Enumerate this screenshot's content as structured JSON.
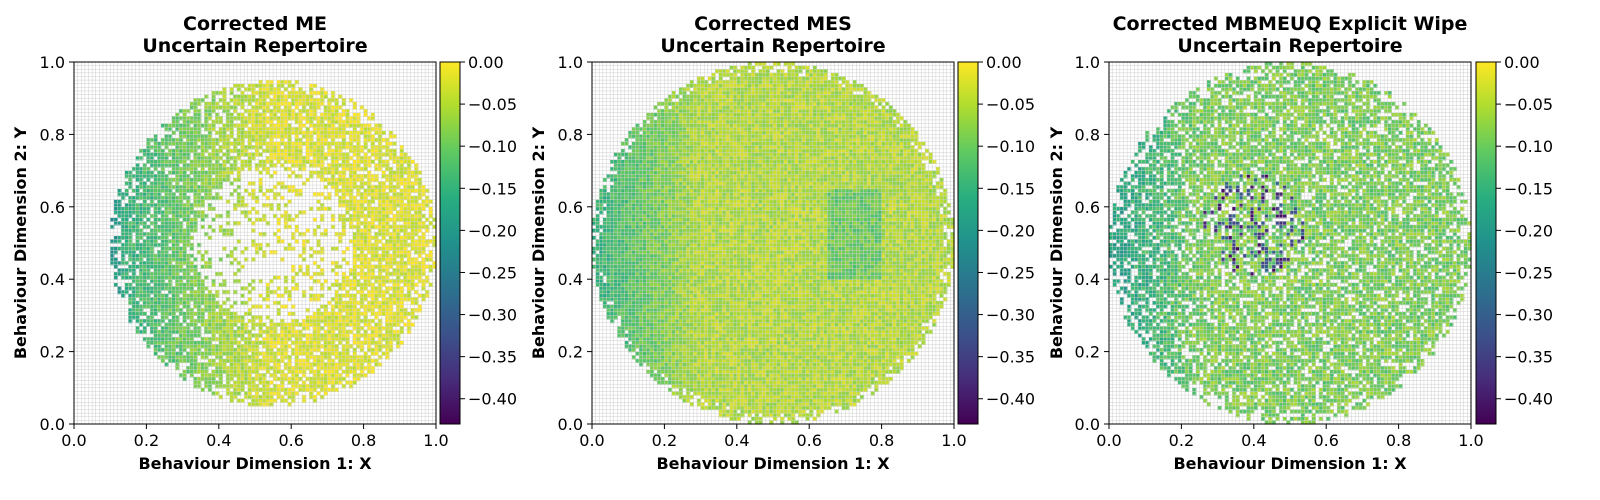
{
  "chart_data": [
    {
      "type": "heatmap",
      "title": "Corrected ME\nUncertain Repertoire",
      "xlabel": "Behaviour Dimension 1: X",
      "ylabel": "Behaviour Dimension 2: Y",
      "xlim": [
        0,
        1
      ],
      "ylim": [
        0,
        1
      ],
      "xticks": [
        "0.0",
        "0.2",
        "0.4",
        "0.6",
        "0.8",
        "1.0"
      ],
      "yticks": [
        "0.0",
        "0.2",
        "0.4",
        "0.6",
        "0.8",
        "1.0"
      ],
      "grid": true,
      "grid_cells": 100,
      "colormap": "viridis",
      "clim": [
        -0.43,
        0.0
      ],
      "colorbar_ticks": [
        "0.00",
        "−0.05",
        "−0.10",
        "−0.15",
        "−0.20",
        "−0.25",
        "−0.30",
        "−0.35",
        "−0.40"
      ],
      "data_shape": "circular region centred at (0.55, 0.5), radius 0.45, with a sparse hole in the middle (radius ~0.22)",
      "fill_region": {
        "center": [
          0.55,
          0.5
        ],
        "radius": 0.45,
        "hole_radius": 0.22,
        "hole_density": 0.3
      },
      "value_profile": "values near 0.00 (yellow) on the right side, decreasing to about −0.30 (dark) at the far-left edge"
    },
    {
      "type": "heatmap",
      "title": "Corrected MES\nUncertain Repertoire",
      "xlabel": "Behaviour Dimension 1: X",
      "ylabel": "Behaviour Dimension 2: Y",
      "xlim": [
        0,
        1
      ],
      "ylim": [
        0,
        1
      ],
      "xticks": [
        "0.0",
        "0.2",
        "0.4",
        "0.6",
        "0.8",
        "1.0"
      ],
      "yticks": [
        "0.0",
        "0.2",
        "0.4",
        "0.6",
        "0.8",
        "1.0"
      ],
      "grid": true,
      "grid_cells": 100,
      "colormap": "viridis",
      "clim": [
        -0.43,
        0.0
      ],
      "colorbar_ticks": [
        "0.00",
        "−0.05",
        "−0.10",
        "−0.15",
        "−0.20",
        "−0.25",
        "−0.30",
        "−0.35",
        "−0.40"
      ],
      "data_shape": "filled circle centred at (0.5, 0.5), radius 0.5, densely covered",
      "fill_region": {
        "center": [
          0.5,
          0.5
        ],
        "radius": 0.5,
        "hole_radius": 0.0,
        "hole_density": 1.0
      },
      "value_profile": "mostly between −0.02 and −0.10, darker (about −0.30) along the left edge"
    },
    {
      "type": "heatmap",
      "title": "Corrected MBMEUQ Explicit Wipe\nUncertain Repertoire",
      "xlabel": "Behaviour Dimension 1: X",
      "ylabel": "Behaviour Dimension 2: Y",
      "xlim": [
        0,
        1
      ],
      "ylim": [
        0,
        1
      ],
      "xticks": [
        "0.0",
        "0.2",
        "0.4",
        "0.6",
        "0.8",
        "1.0"
      ],
      "yticks": [
        "0.0",
        "0.2",
        "0.4",
        "0.6",
        "0.8",
        "1.0"
      ],
      "grid": true,
      "grid_cells": 100,
      "colormap": "viridis",
      "clim": [
        -0.43,
        0.0
      ],
      "colorbar_ticks": [
        "0.00",
        "−0.05",
        "−0.10",
        "−0.15",
        "−0.20",
        "−0.25",
        "−0.30",
        "−0.35",
        "−0.40"
      ],
      "data_shape": "circle centred at (0.5, 0.5), radius 0.5, sparser than MES",
      "fill_region": {
        "center": [
          0.5,
          0.5
        ],
        "radius": 0.5,
        "hole_radius": 0.0,
        "hole_density": 0.75
      },
      "value_profile": "mostly −0.05 to −0.15, with dark cells (−0.30 to −0.42) concentrated near (0.4, 0.55) and teal values near the left edge"
    }
  ]
}
